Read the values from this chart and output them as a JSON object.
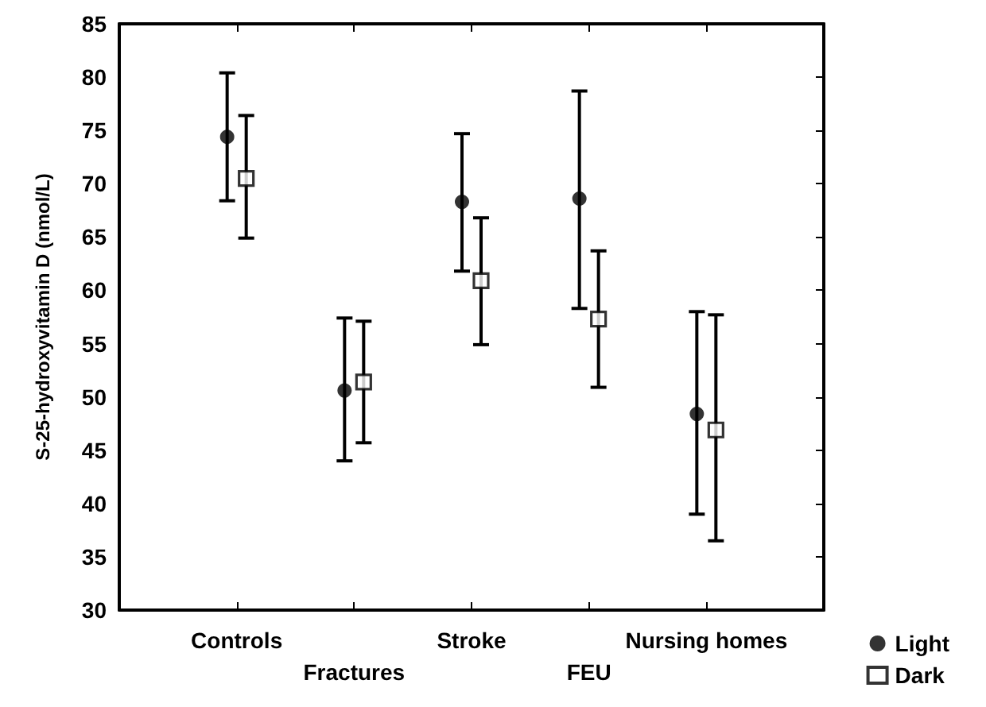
{
  "chart_data": {
    "type": "scatter",
    "ylabel": "S-25-hydroxyvitamin D (nmol/L)",
    "categories": [
      "Controls",
      "Fractures",
      "Stroke",
      "FEU",
      "Nursing homes"
    ],
    "series": [
      {
        "name": "Light",
        "color": "#000000",
        "marker": "circle",
        "values": [
          74.4,
          50.6,
          68.3,
          68.6,
          48.4
        ],
        "errors": [
          [
            68.4,
            80.4
          ],
          [
            44.0,
            57.4
          ],
          [
            61.8,
            74.7
          ],
          [
            58.3,
            78.7
          ],
          [
            39.0,
            58.0
          ]
        ]
      },
      {
        "name": "Dark",
        "color": "#000000",
        "marker": "square",
        "values": [
          70.5,
          51.4,
          60.9,
          57.3,
          46.9
        ],
        "errors": [
          [
            64.9,
            76.4
          ],
          [
            45.7,
            57.1
          ],
          [
            54.9,
            66.8
          ],
          [
            50.9,
            63.7
          ],
          [
            36.5,
            57.7
          ]
        ]
      }
    ],
    "ylim": [
      30,
      85
    ],
    "yticks": [
      30,
      35,
      40,
      45,
      50,
      55,
      60,
      65,
      70,
      75,
      80,
      85
    ],
    "legend": "bottom right"
  }
}
